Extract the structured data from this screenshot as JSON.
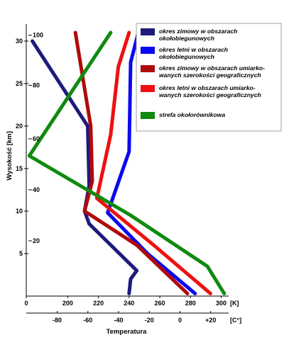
{
  "chart_data": {
    "type": "line",
    "ylabel": "Wysokość [km]",
    "xlabel": "Temperatura",
    "y_range_km": [
      0,
      32
    ],
    "kelvin_range": [
      173,
      303
    ],
    "kelvin_ticks": [
      "0",
      "200",
      "220",
      "240",
      "260",
      "280",
      "300"
    ],
    "kelvin_unit": "[K]",
    "celsius_ticks": [
      "-80",
      "-60",
      "-40",
      "-20",
      "0",
      "+20"
    ],
    "celsius_unit": "[C°]",
    "km_ticks": [
      "5",
      "10",
      "15",
      "20",
      "25",
      "30"
    ],
    "pressure_ticks": [
      {
        "label": "20",
        "km": 6.5
      },
      {
        "label": "40",
        "km": 12.5
      },
      {
        "label": "60",
        "km": 18.5
      },
      {
        "label": "80",
        "km": 24.8
      },
      {
        "label": "100",
        "km": 30.7
      }
    ],
    "legend_position": "top-right",
    "series": [
      {
        "name": "okres zimowy w obszarach okołobiegunowych",
        "legend_lines": [
          "okres zimowy w obszarach",
          "okołobiegunowych"
        ],
        "color": "#1f1a7a",
        "points": [
          [
            177,
            30
          ],
          [
            213,
            20
          ],
          [
            214,
            13
          ],
          [
            211,
            10
          ],
          [
            214,
            8.5
          ],
          [
            245,
            3
          ],
          [
            241,
            2
          ],
          [
            240,
            0.3
          ]
        ]
      },
      {
        "name": "okres letni w obszarach okołobiegunowych",
        "legend_lines": [
          "okres letni w obszarach",
          "okołobiegunowych"
        ],
        "color": "#0a0af0",
        "points": [
          [
            246,
            31
          ],
          [
            241,
            27.5
          ],
          [
            240,
            17
          ],
          [
            226,
            9.8
          ],
          [
            252,
            5
          ],
          [
            283,
            0.3
          ]
        ]
      },
      {
        "name": "okres zimowy w obszarach umiarkowanych szerokości geograficznych",
        "legend_lines": [
          "okres zimowy w obszarach umiarko-",
          "wanych szerokości geograficznych"
        ],
        "color": "#b00a0a",
        "points": [
          [
            205,
            31
          ],
          [
            215,
            20
          ],
          [
            216,
            13.5
          ],
          [
            211,
            10
          ],
          [
            245,
            6
          ],
          [
            278,
            0.3
          ]
        ]
      },
      {
        "name": "okres letni w obszarach umiarkowanych szerokości geograficznych",
        "legend_lines": [
          "okres letni w obszarach umiarko-",
          "wanych szerokości geograficznych"
        ],
        "color": "#ee1010",
        "points": [
          [
            240,
            31
          ],
          [
            233,
            27
          ],
          [
            228,
            19
          ],
          [
            219,
            11.5
          ],
          [
            256,
            6
          ],
          [
            293,
            0.3
          ]
        ]
      },
      {
        "name": "strefa okołorównikowa",
        "legend_lines": [
          "strefa okołorównikowa"
        ],
        "color": "#108a10",
        "points": [
          [
            228,
            31
          ],
          [
            175,
            16.5
          ],
          [
            241,
            9.5
          ],
          [
            291,
            3.5
          ],
          [
            302,
            0.3
          ]
        ]
      }
    ]
  }
}
